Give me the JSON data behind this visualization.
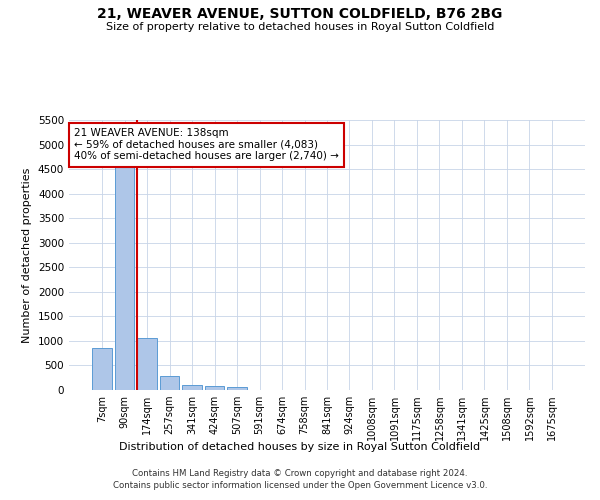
{
  "title_line1": "21, WEAVER AVENUE, SUTTON COLDFIELD, B76 2BG",
  "title_line2": "Size of property relative to detached houses in Royal Sutton Coldfield",
  "xlabel": "Distribution of detached houses by size in Royal Sutton Coldfield",
  "ylabel": "Number of detached properties",
  "footnote1": "Contains HM Land Registry data © Crown copyright and database right 2024.",
  "footnote2": "Contains public sector information licensed under the Open Government Licence v3.0.",
  "annotation_line1": "21 WEAVER AVENUE: 138sqm",
  "annotation_line2": "← 59% of detached houses are smaller (4,083)",
  "annotation_line3": "40% of semi-detached houses are larger (2,740) →",
  "categories": [
    "7sqm",
    "90sqm",
    "174sqm",
    "257sqm",
    "341sqm",
    "424sqm",
    "507sqm",
    "591sqm",
    "674sqm",
    "758sqm",
    "841sqm",
    "924sqm",
    "1008sqm",
    "1091sqm",
    "1175sqm",
    "1258sqm",
    "1341sqm",
    "1425sqm",
    "1508sqm",
    "1592sqm",
    "1675sqm"
  ],
  "values": [
    850,
    4600,
    1050,
    280,
    100,
    90,
    60,
    0,
    0,
    0,
    0,
    0,
    0,
    0,
    0,
    0,
    0,
    0,
    0,
    0,
    0
  ],
  "bar_color": "#aec6e8",
  "bar_edge_color": "#5b9bd5",
  "marker_line_color": "#cc0000",
  "marker_bar_index": 2,
  "ylim": [
    0,
    5500
  ],
  "yticks": [
    0,
    500,
    1000,
    1500,
    2000,
    2500,
    3000,
    3500,
    4000,
    4500,
    5000,
    5500
  ],
  "annotation_box_color": "#ffffff",
  "annotation_box_edge": "#cc0000",
  "bg_color": "#ffffff",
  "grid_color": "#c8d4e8"
}
